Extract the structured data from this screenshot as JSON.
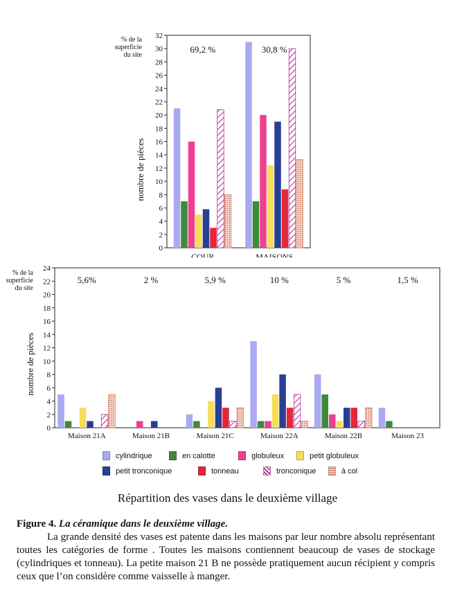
{
  "colors": {
    "cylindrique": "#a9aaf0",
    "en_calotte": "#3e8a3c",
    "globuleux": "#ef3f8f",
    "petit_globuleux": "#f7dd5a",
    "petit_tronconique": "#283f96",
    "tonneau": "#e3283a",
    "tronconique": "#b0349b",
    "a_col": "#d47c5c"
  },
  "legend": [
    {
      "key": "cylindrique",
      "label": "cylindrique"
    },
    {
      "key": "en_calotte",
      "label": "en calotte"
    },
    {
      "key": "globuleux",
      "label": "globuleux"
    },
    {
      "key": "petit_globuleux",
      "label": "petit globuleux"
    },
    {
      "key": "petit_tronconique",
      "label": "petit tronconique"
    },
    {
      "key": "tonneau",
      "label": "tonneau"
    },
    {
      "key": "tronconique",
      "label": "tronconique"
    },
    {
      "key": "a_col",
      "label": "à col"
    }
  ],
  "chart_data": [
    {
      "type": "bar",
      "ylabel": "nombre de pièces",
      "percent_label": "% de la superficie du site",
      "ylim": [
        0,
        32
      ],
      "yticks": [
        0,
        2,
        4,
        6,
        8,
        10,
        12,
        14,
        16,
        18,
        20,
        22,
        24,
        26,
        28,
        30,
        32
      ],
      "categories": [
        "COUR",
        "MAISONS"
      ],
      "percents": [
        "69,2 %",
        "30,8 %"
      ],
      "series": [
        {
          "name": "cylindrique",
          "values": [
            21,
            31
          ]
        },
        {
          "name": "en calotte",
          "values": [
            7,
            7
          ]
        },
        {
          "name": "globuleux",
          "values": [
            16,
            20
          ]
        },
        {
          "name": "petit globuleux",
          "values": [
            5,
            12.4
          ]
        },
        {
          "name": "petit tronconique",
          "values": [
            5.8,
            19
          ]
        },
        {
          "name": "tonneau",
          "values": [
            3,
            8.8
          ]
        },
        {
          "name": "tronconique",
          "values": [
            20.8,
            30
          ]
        },
        {
          "name": "à col",
          "values": [
            8,
            13.3
          ]
        }
      ]
    },
    {
      "type": "bar",
      "ylabel": "nombre de pièces",
      "percent_label": "% de la superficie du site",
      "ylim": [
        0,
        24
      ],
      "yticks": [
        0,
        2,
        4,
        6,
        8,
        10,
        12,
        14,
        16,
        18,
        20,
        22,
        24
      ],
      "categories": [
        "Maison 21A",
        "Maison 21B",
        "Maison 21C",
        "Maison 22A",
        "Maison 22B",
        "Maison 23"
      ],
      "percents": [
        "5,6%",
        "2 %",
        "5,9 %",
        "10 %",
        "5 %",
        "1,5 %"
      ],
      "series": [
        {
          "name": "cylindrique",
          "values": [
            5,
            0,
            2,
            13,
            8,
            3
          ]
        },
        {
          "name": "en calotte",
          "values": [
            1,
            0,
            1,
            1,
            5,
            1
          ]
        },
        {
          "name": "globuleux",
          "values": [
            0,
            1,
            0,
            1,
            2,
            0
          ]
        },
        {
          "name": "petit globuleux",
          "values": [
            3,
            0,
            4,
            5,
            1,
            0
          ]
        },
        {
          "name": "petit tronconique",
          "values": [
            1,
            1,
            6,
            8,
            3,
            0
          ]
        },
        {
          "name": "tonneau",
          "values": [
            0,
            0,
            3,
            3,
            3,
            0
          ]
        },
        {
          "name": "tronconique",
          "values": [
            2,
            0,
            1,
            5,
            1,
            0
          ]
        },
        {
          "name": "à col",
          "values": [
            5,
            0,
            3,
            1,
            3,
            0
          ]
        }
      ]
    }
  ],
  "repartition_title": "Répartition des vases dans le deuxième village",
  "caption": {
    "label": "Figure 4.",
    "title": "La céramique dans le deuxième village.",
    "paragraph": "La grande densité des vases est patente dans les maisons par leur nombre absolu représentant toutes les catégories de forme . Toutes les maisons contiennent beaucoup de vases de stockage (cylindriques et tonneau). La petite maison 21 B ne possède pratiquement aucun récipient y compris ceux que l’on considère comme vaisselle à manger."
  }
}
